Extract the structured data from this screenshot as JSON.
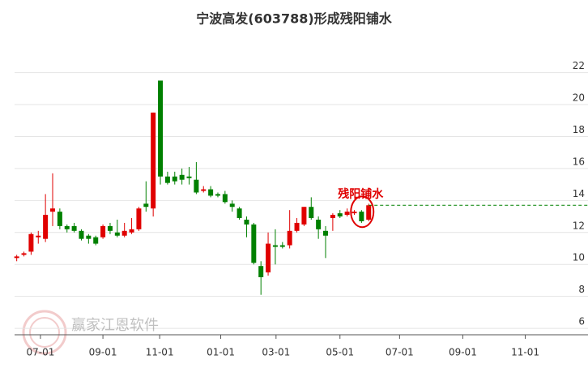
{
  "chart_data": {
    "type": "candlestick",
    "title": "宁波高发(603788)形成残阳铺水",
    "annotation": "残阳铺水",
    "watermark": "赢家江恩软件",
    "up_color": "#e00000",
    "down_color": "#008000",
    "grid": true,
    "xlim": [
      -0.3,
      76.6
    ],
    "ylim": [
      5.6,
      23.5
    ],
    "xticks": [
      {
        "value": 3.3,
        "label": "07-01"
      },
      {
        "value": 12.0,
        "label": "09-01"
      },
      {
        "value": 19.9,
        "label": "11-01"
      },
      {
        "value": 28.4,
        "label": "01-01"
      },
      {
        "value": 36.1,
        "label": "03-01"
      },
      {
        "value": 45.0,
        "label": "05-01"
      },
      {
        "value": 53.3,
        "label": "07-01"
      },
      {
        "value": 62.1,
        "label": "09-01"
      },
      {
        "value": 70.8,
        "label": "11-01"
      }
    ],
    "yticks": [
      6,
      8,
      10,
      12,
      14,
      16,
      18,
      20,
      22
    ],
    "x": [
      0,
      1,
      2,
      3,
      4,
      5,
      6,
      7,
      8,
      9,
      10,
      11,
      12,
      13,
      14,
      15,
      16,
      17,
      18,
      19,
      20,
      21,
      22,
      23,
      24,
      25,
      26,
      27,
      28,
      29,
      30,
      31,
      32,
      33,
      34,
      35,
      36,
      37,
      38,
      39,
      40,
      41,
      42,
      43,
      44,
      45,
      46,
      47,
      48,
      49
    ],
    "open": [
      10.4,
      10.6,
      10.8,
      11.7,
      11.6,
      13.3,
      13.3,
      12.4,
      12.4,
      12.1,
      11.8,
      11.7,
      11.7,
      12.4,
      12.0,
      11.8,
      12.0,
      12.2,
      13.8,
      13.5,
      21.5,
      15.5,
      15.5,
      15.6,
      15.5,
      15.3,
      14.6,
      14.7,
      14.4,
      14.4,
      13.8,
      13.5,
      12.8,
      12.5,
      9.9,
      9.5,
      11.2,
      11.2,
      11.2,
      12.1,
      12.5,
      13.6,
      12.8,
      12.1,
      12.9,
      13.2,
      13.1,
      13.2,
      13.3,
      12.8
    ],
    "close": [
      10.5,
      10.7,
      11.9,
      11.8,
      13.1,
      13.5,
      12.4,
      12.2,
      12.1,
      11.6,
      11.6,
      11.3,
      12.4,
      12.1,
      11.8,
      12.1,
      12.2,
      13.5,
      13.6,
      19.5,
      15.5,
      15.1,
      15.2,
      15.3,
      15.4,
      14.5,
      14.7,
      14.3,
      14.3,
      13.9,
      13.6,
      12.9,
      12.5,
      10.1,
      9.2,
      11.3,
      11.1,
      11.1,
      12.1,
      12.6,
      13.6,
      12.9,
      12.2,
      11.8,
      13.1,
      13.0,
      13.3,
      13.3,
      12.7,
      13.7
    ],
    "high": [
      10.6,
      10.8,
      12.0,
      12.1,
      14.4,
      15.7,
      13.5,
      12.5,
      12.6,
      12.2,
      11.9,
      11.8,
      12.5,
      12.6,
      12.8,
      12.6,
      12.9,
      13.6,
      15.2,
      19.5,
      21.5,
      15.8,
      15.8,
      16.0,
      16.1,
      16.4,
      14.9,
      14.9,
      14.5,
      14.6,
      14.0,
      13.6,
      13.0,
      12.6,
      10.2,
      12.0,
      12.2,
      11.4,
      13.4,
      12.9,
      13.6,
      14.2,
      13.0,
      12.4,
      13.2,
      13.4,
      13.5,
      13.4,
      13.4,
      13.8
    ],
    "low": [
      10.2,
      10.5,
      10.6,
      11.3,
      11.4,
      12.4,
      12.2,
      12.0,
      12.0,
      11.5,
      11.3,
      11.2,
      11.6,
      11.9,
      11.7,
      11.7,
      11.9,
      12.1,
      13.3,
      13.0,
      15.0,
      15.0,
      15.0,
      15.0,
      15.0,
      14.4,
      14.5,
      14.2,
      14.2,
      13.8,
      13.3,
      12.8,
      11.7,
      10.0,
      8.1,
      9.3,
      10.0,
      11.0,
      11.0,
      12.0,
      12.4,
      12.8,
      11.6,
      10.4,
      12.1,
      12.9,
      13.0,
      13.1,
      12.6,
      12.7
    ]
  }
}
